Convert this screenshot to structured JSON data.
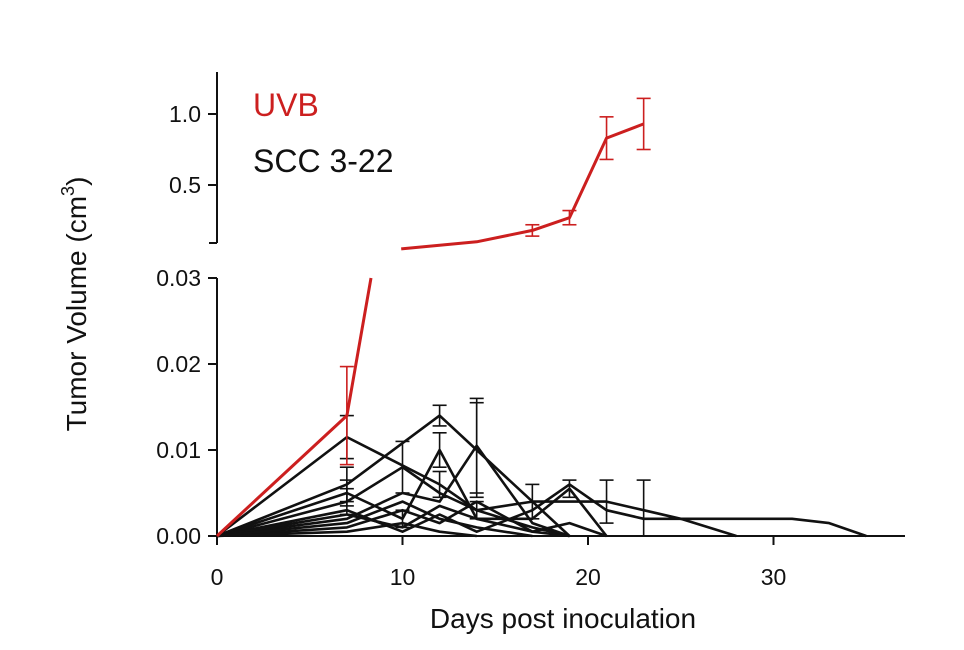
{
  "chart_data": {
    "type": "line",
    "title": "",
    "xlabel": "Days post inoculation",
    "ylabel_main": "Tumor Volume (cm",
    "ylabel_sup": "3",
    "ylabel_close": ")",
    "broken_y_axis": true,
    "xlim": [
      0,
      37
    ],
    "x_ticks": [
      0,
      10,
      20,
      30
    ],
    "x_tick_labels": [
      "0",
      "10",
      "20",
      "30"
    ],
    "upper_ylim": [
      0.05,
      1.25
    ],
    "upper_y_ticks": [
      0.5,
      1.0
    ],
    "upper_y_tick_labels": [
      "0.5",
      "1.0"
    ],
    "lower_ylim": [
      0,
      0.03
    ],
    "lower_y_ticks": [
      0,
      0.01,
      0.02,
      0.03
    ],
    "lower_y_tick_labels": [
      "0.00",
      "0.01",
      "0.02",
      "0.03"
    ],
    "legend": [
      {
        "label": "UVB",
        "color": "#cc1f1f"
      },
      {
        "label": "SCC 3-22",
        "color": "#111111"
      }
    ],
    "series": [
      {
        "group": "UVB",
        "color": "#cc1f1f",
        "points": [
          {
            "x": 0,
            "y": 0
          },
          {
            "x": 7,
            "y": 0.014,
            "err": 0.0057
          },
          {
            "x": 14,
            "y": 0.1
          },
          {
            "x": 17,
            "y": 0.18,
            "err": 0.04
          },
          {
            "x": 19,
            "y": 0.27,
            "err": 0.05
          },
          {
            "x": 21,
            "y": 0.83,
            "err": 0.15
          },
          {
            "x": 23,
            "y": 0.93,
            "err": 0.18
          }
        ]
      },
      {
        "group": "SCC 3-22",
        "color": "#111111",
        "points": [
          {
            "x": 0,
            "y": 0
          },
          {
            "x": 7,
            "y": 0.0115,
            "err": 0.0025
          },
          {
            "x": 12,
            "y": 0.006,
            "err": 0.0015
          },
          {
            "x": 14,
            "y": 0.003,
            "err": 0.001
          },
          {
            "x": 17,
            "y": 0.001
          },
          {
            "x": 19,
            "y": 0
          }
        ]
      },
      {
        "group": "SCC 3-22",
        "color": "#111111",
        "points": [
          {
            "x": 0,
            "y": 0
          },
          {
            "x": 7,
            "y": 0.006,
            "err": 0.002
          },
          {
            "x": 12,
            "y": 0.014,
            "err": 0.0012
          },
          {
            "x": 14,
            "y": 0.01,
            "err": 0.0055
          },
          {
            "x": 17,
            "y": 0.004,
            "err": 0.002
          },
          {
            "x": 19,
            "y": 0
          }
        ]
      },
      {
        "group": "SCC 3-22",
        "color": "#111111",
        "points": [
          {
            "x": 0,
            "y": 0
          },
          {
            "x": 7,
            "y": 0.005,
            "err": 0.0015
          },
          {
            "x": 10,
            "y": 0.002,
            "err": 0.001
          },
          {
            "x": 12,
            "y": 0.01,
            "err": 0.002
          },
          {
            "x": 14,
            "y": 0.002
          },
          {
            "x": 17,
            "y": 0.002
          },
          {
            "x": 19,
            "y": 0.0055,
            "err": 0.001
          },
          {
            "x": 21,
            "y": 0
          }
        ]
      },
      {
        "group": "SCC 3-22",
        "color": "#111111",
        "points": [
          {
            "x": 0,
            "y": 0
          },
          {
            "x": 7,
            "y": 0.004,
            "err": 0.0015
          },
          {
            "x": 10,
            "y": 0.008,
            "err": 0.003
          },
          {
            "x": 12,
            "y": 0.005
          },
          {
            "x": 14,
            "y": 0.003
          },
          {
            "x": 17,
            "y": 0.004
          },
          {
            "x": 19,
            "y": 0.004
          },
          {
            "x": 21,
            "y": 0.004,
            "err": 0.0025
          },
          {
            "x": 23,
            "y": 0.003,
            "err": 0.0035
          },
          {
            "x": 25,
            "y": 0.002
          },
          {
            "x": 28,
            "y": 0.002
          },
          {
            "x": 31,
            "y": 0.002
          },
          {
            "x": 33,
            "y": 0.0015
          },
          {
            "x": 35,
            "y": 0
          }
        ]
      },
      {
        "group": "SCC 3-22",
        "color": "#111111",
        "points": [
          {
            "x": 0,
            "y": 0
          },
          {
            "x": 7,
            "y": 0.003
          },
          {
            "x": 10,
            "y": 0.0005
          },
          {
            "x": 12,
            "y": 0.0025
          },
          {
            "x": 14,
            "y": 0.0005
          },
          {
            "x": 17,
            "y": 0.003
          },
          {
            "x": 19,
            "y": 0.006
          },
          {
            "x": 21,
            "y": 0.003
          },
          {
            "x": 23,
            "y": 0.002
          },
          {
            "x": 25,
            "y": 0.002
          },
          {
            "x": 28,
            "y": 0
          }
        ]
      },
      {
        "group": "SCC 3-22",
        "color": "#111111",
        "points": [
          {
            "x": 0,
            "y": 0
          },
          {
            "x": 7,
            "y": 0.002
          },
          {
            "x": 10,
            "y": 0.005
          },
          {
            "x": 12,
            "y": 0.004
          },
          {
            "x": 14,
            "y": 0.0105,
            "err": 0.0055
          },
          {
            "x": 17,
            "y": 0.0015
          },
          {
            "x": 19,
            "y": 0
          }
        ]
      },
      {
        "group": "SCC 3-22",
        "color": "#111111",
        "points": [
          {
            "x": 0,
            "y": 0
          },
          {
            "x": 7,
            "y": 0.001
          },
          {
            "x": 10,
            "y": 0.003
          },
          {
            "x": 12,
            "y": 0.0015
          },
          {
            "x": 14,
            "y": 0.004
          },
          {
            "x": 17,
            "y": 0.0005
          },
          {
            "x": 19,
            "y": 0
          }
        ]
      },
      {
        "group": "SCC 3-22",
        "color": "#111111",
        "points": [
          {
            "x": 0,
            "y": 0
          },
          {
            "x": 7,
            "y": 0.0005
          },
          {
            "x": 10,
            "y": 0.0015
          },
          {
            "x": 12,
            "y": 0.0005
          },
          {
            "x": 14,
            "y": 0
          }
        ]
      },
      {
        "group": "SCC 3-22",
        "color": "#111111",
        "points": [
          {
            "x": 0,
            "y": 0
          },
          {
            "x": 7,
            "y": 0.0025
          },
          {
            "x": 10,
            "y": 0.001
          },
          {
            "x": 12,
            "y": 0.0035
          },
          {
            "x": 14,
            "y": 0.002
          },
          {
            "x": 17,
            "y": 0.0005
          },
          {
            "x": 19,
            "y": 0.0015
          },
          {
            "x": 21,
            "y": 0
          }
        ]
      },
      {
        "group": "SCC 3-22",
        "color": "#111111",
        "points": [
          {
            "x": 0,
            "y": 0
          },
          {
            "x": 7,
            "y": 0.0015
          },
          {
            "x": 10,
            "y": 0.004
          },
          {
            "x": 12,
            "y": 0.002
          },
          {
            "x": 14,
            "y": 0.001
          },
          {
            "x": 17,
            "y": 0
          }
        ]
      }
    ]
  }
}
